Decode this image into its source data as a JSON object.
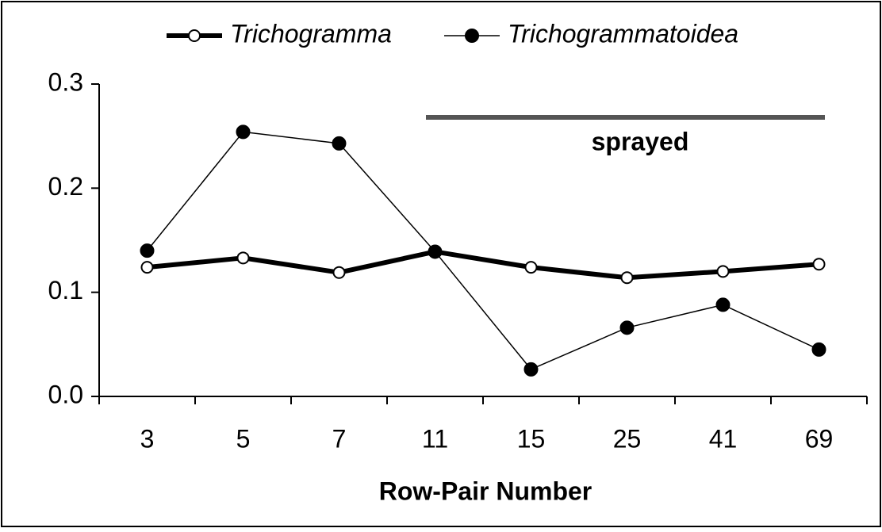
{
  "chart_data": {
    "type": "line",
    "xlabel": "Row-Pair Number",
    "categories": [
      "3",
      "5",
      "7",
      "11",
      "15",
      "25",
      "41",
      "69"
    ],
    "series": [
      {
        "name": "Trichogramma",
        "color": "#000000",
        "values": [
          0.124,
          0.133,
          0.119,
          0.139,
          0.124,
          0.114,
          0.12,
          0.127
        ]
      },
      {
        "name": "Trichogrammatoidea",
        "color": "#000000",
        "values": [
          0.14,
          0.254,
          0.243,
          0.139,
          0.026,
          0.066,
          0.088,
          0.045
        ]
      }
    ],
    "ylim": [
      0,
      0.3
    ],
    "yticks": [
      {
        "value": 0,
        "label": "0.0"
      },
      0.1,
      0.2,
      0.3
    ],
    "annotations": [
      "sprayed"
    ],
    "legend": "top",
    "grid": false
  }
}
